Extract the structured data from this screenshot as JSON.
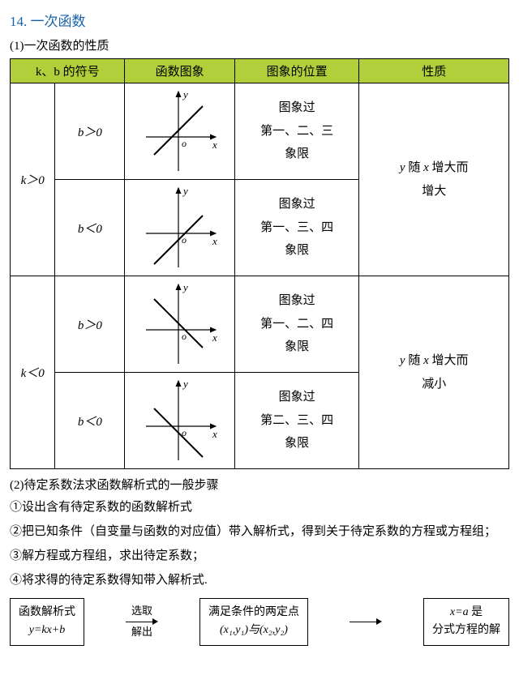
{
  "title": "14. 一次函数",
  "section1_title": "(1)一次函数的性质",
  "table": {
    "header_bg": "#b0cf3a",
    "headers": [
      "k、b 的符号",
      "函数图象",
      "图象的位置",
      "性质"
    ],
    "rows": [
      {
        "k": "k＞0",
        "b": "b＞0",
        "pos_l1": "图象过",
        "pos_l2": "第一、二、三",
        "pos_l3": "象限",
        "prop_l1": "y 随 x 增大而",
        "prop_l2": "增大",
        "graph": {
          "slope": 1,
          "intercept": 8
        }
      },
      {
        "b": "b＜0",
        "pos_l1": "图象过",
        "pos_l2": "第一、三、四",
        "pos_l3": "象限",
        "graph": {
          "slope": 1,
          "intercept": -8
        }
      },
      {
        "k": "k＜0",
        "b": "b＞0",
        "pos_l1": "图象过",
        "pos_l2": "第一、二、四",
        "pos_l3": "象限",
        "prop_l1": "y 随 x 增大而",
        "prop_l2": "减小",
        "graph": {
          "slope": -1,
          "intercept": 8
        }
      },
      {
        "b": "b＜0",
        "pos_l1": "图象过",
        "pos_l2": "第二、三、四",
        "pos_l3": "象限",
        "graph": {
          "slope": -1,
          "intercept": -8
        }
      }
    ]
  },
  "section2_title": "(2)待定系数法求函数解析式的一般步骤",
  "steps": {
    "s1": "①设出含有待定系数的函数解析式",
    "s2": "②把已知条件（自变量与函数的对应值）带入解析式，得到关于待定系数的方程或方程组；",
    "s3": "③解方程或方程组，求出待定系数；",
    "s4": "④将求得的待定系数得知带入解析式."
  },
  "flow": {
    "box1_l1": "函数解析式",
    "box1_l2": "y=kx+b",
    "conn1_top": "选取",
    "conn1_bot": "解出",
    "box2_l1": "满足条件的两定点",
    "box2_l2": "(x₁,y₁)与(x₂,y₂)",
    "box3_l1": "x=a  是",
    "box3_l2": "分式方程的解"
  }
}
